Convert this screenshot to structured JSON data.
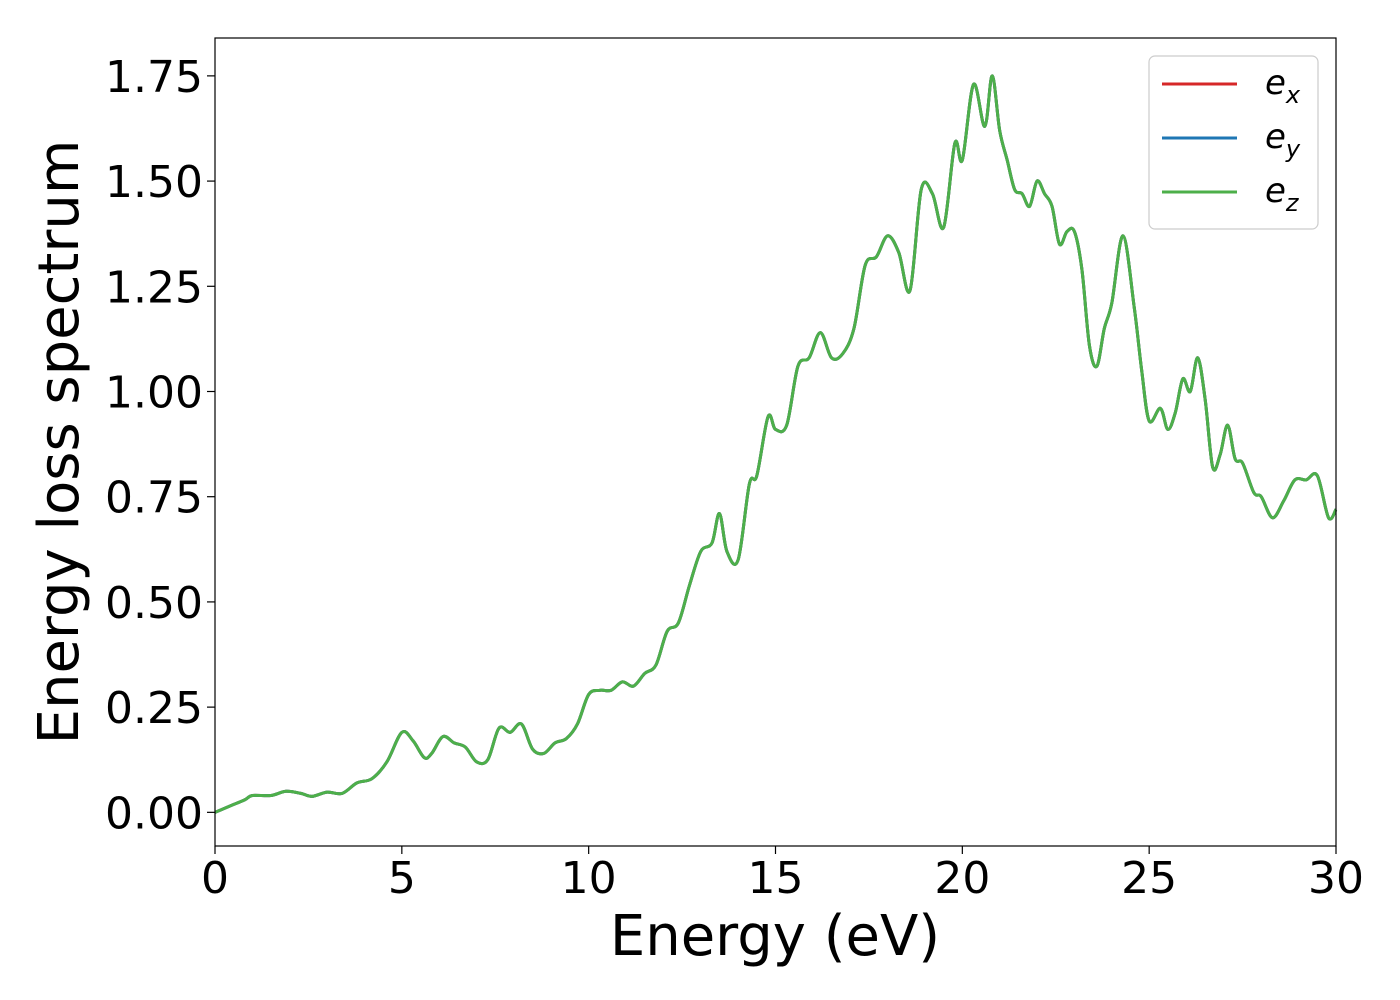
{
  "chart_data": {
    "type": "line",
    "xlabel": "Energy (eV)",
    "ylabel": "Energy loss spectrum",
    "xlim": [
      0,
      30
    ],
    "ylim": [
      -0.08,
      1.84
    ],
    "xticks": [
      0,
      5,
      10,
      15,
      20,
      25,
      30
    ],
    "xtick_labels": [
      "0",
      "5",
      "10",
      "15",
      "20",
      "25",
      "30"
    ],
    "yticks": [
      0,
      0.25,
      0.5,
      0.75,
      1.0,
      1.25,
      1.5,
      1.75
    ],
    "ytick_labels": [
      "0.00",
      "0.25",
      "0.50",
      "0.75",
      "1.00",
      "1.25",
      "1.50",
      "1.75"
    ],
    "grid": false,
    "legend_position": "top-right",
    "x": [
      0,
      0.4,
      0.8,
      1.0,
      1.5,
      1.9,
      2.3,
      2.6,
      3.0,
      3.4,
      3.8,
      4.2,
      4.6,
      5.0,
      5.3,
      5.6,
      5.8,
      6.1,
      6.4,
      6.7,
      7.0,
      7.3,
      7.6,
      7.9,
      8.2,
      8.5,
      8.8,
      9.1,
      9.4,
      9.7,
      10.0,
      10.3,
      10.6,
      10.9,
      11.2,
      11.5,
      11.8,
      12.1,
      12.4,
      12.7,
      13.0,
      13.3,
      13.5,
      13.7,
      14.0,
      14.3,
      14.5,
      14.8,
      15.0,
      15.3,
      15.6,
      15.9,
      16.2,
      16.5,
      16.8,
      17.1,
      17.4,
      17.7,
      18.0,
      18.3,
      18.6,
      18.9,
      19.2,
      19.5,
      19.8,
      20.0,
      20.3,
      20.6,
      20.8,
      21.0,
      21.2,
      21.4,
      21.6,
      21.8,
      22.0,
      22.2,
      22.4,
      22.6,
      22.8,
      23.0,
      23.2,
      23.4,
      23.6,
      23.8,
      24.0,
      24.3,
      24.6,
      24.8,
      25.0,
      25.3,
      25.5,
      25.7,
      25.9,
      26.1,
      26.3,
      26.5,
      26.7,
      26.9,
      27.1,
      27.3,
      27.5,
      27.8,
      28.0,
      28.3,
      28.6,
      28.9,
      29.2,
      29.5,
      29.8,
      30.0
    ],
    "series": [
      {
        "name": "e_x",
        "color": "#d62728",
        "values": [
          0.0,
          0.015,
          0.03,
          0.04,
          0.04,
          0.05,
          0.045,
          0.038,
          0.048,
          0.045,
          0.07,
          0.08,
          0.12,
          0.19,
          0.17,
          0.13,
          0.14,
          0.18,
          0.165,
          0.155,
          0.12,
          0.125,
          0.2,
          0.19,
          0.21,
          0.15,
          0.14,
          0.165,
          0.175,
          0.21,
          0.28,
          0.29,
          0.29,
          0.31,
          0.3,
          0.33,
          0.35,
          0.43,
          0.45,
          0.54,
          0.62,
          0.64,
          0.71,
          0.62,
          0.6,
          0.78,
          0.8,
          0.94,
          0.91,
          0.92,
          1.06,
          1.08,
          1.14,
          1.08,
          1.09,
          1.15,
          1.3,
          1.32,
          1.37,
          1.33,
          1.24,
          1.48,
          1.47,
          1.39,
          1.59,
          1.55,
          1.73,
          1.63,
          1.75,
          1.62,
          1.55,
          1.48,
          1.47,
          1.44,
          1.5,
          1.47,
          1.44,
          1.35,
          1.38,
          1.38,
          1.29,
          1.11,
          1.06,
          1.15,
          1.21,
          1.37,
          1.2,
          1.05,
          0.93,
          0.96,
          0.91,
          0.95,
          1.03,
          1.0,
          1.08,
          0.98,
          0.82,
          0.85,
          0.92,
          0.84,
          0.83,
          0.76,
          0.75,
          0.7,
          0.74,
          0.79,
          0.79,
          0.8,
          0.7,
          0.72
        ]
      },
      {
        "name": "e_y",
        "color": "#1f77b4",
        "values": [
          0.0,
          0.015,
          0.03,
          0.04,
          0.04,
          0.05,
          0.045,
          0.038,
          0.048,
          0.045,
          0.07,
          0.08,
          0.12,
          0.19,
          0.17,
          0.13,
          0.14,
          0.18,
          0.165,
          0.155,
          0.12,
          0.125,
          0.2,
          0.19,
          0.21,
          0.15,
          0.14,
          0.165,
          0.175,
          0.21,
          0.28,
          0.29,
          0.29,
          0.31,
          0.3,
          0.33,
          0.35,
          0.43,
          0.45,
          0.54,
          0.62,
          0.64,
          0.71,
          0.62,
          0.6,
          0.78,
          0.8,
          0.94,
          0.91,
          0.92,
          1.06,
          1.08,
          1.14,
          1.08,
          1.09,
          1.15,
          1.3,
          1.32,
          1.37,
          1.33,
          1.24,
          1.48,
          1.47,
          1.39,
          1.59,
          1.55,
          1.73,
          1.63,
          1.75,
          1.62,
          1.55,
          1.48,
          1.47,
          1.44,
          1.5,
          1.47,
          1.44,
          1.35,
          1.38,
          1.38,
          1.29,
          1.11,
          1.06,
          1.15,
          1.21,
          1.37,
          1.2,
          1.05,
          0.93,
          0.96,
          0.91,
          0.95,
          1.03,
          1.0,
          1.08,
          0.98,
          0.82,
          0.85,
          0.92,
          0.84,
          0.83,
          0.76,
          0.75,
          0.7,
          0.74,
          0.79,
          0.79,
          0.8,
          0.7,
          0.72
        ]
      },
      {
        "name": "e_z",
        "color": "#4daf4a",
        "values": [
          0.0,
          0.015,
          0.03,
          0.04,
          0.04,
          0.05,
          0.045,
          0.038,
          0.048,
          0.045,
          0.07,
          0.08,
          0.12,
          0.19,
          0.17,
          0.13,
          0.14,
          0.18,
          0.165,
          0.155,
          0.12,
          0.125,
          0.2,
          0.19,
          0.21,
          0.15,
          0.14,
          0.165,
          0.175,
          0.21,
          0.28,
          0.29,
          0.29,
          0.31,
          0.3,
          0.33,
          0.35,
          0.43,
          0.45,
          0.54,
          0.62,
          0.64,
          0.71,
          0.62,
          0.6,
          0.78,
          0.8,
          0.94,
          0.91,
          0.92,
          1.06,
          1.08,
          1.14,
          1.08,
          1.09,
          1.15,
          1.3,
          1.32,
          1.37,
          1.33,
          1.24,
          1.48,
          1.47,
          1.39,
          1.59,
          1.55,
          1.73,
          1.63,
          1.75,
          1.62,
          1.55,
          1.48,
          1.47,
          1.44,
          1.5,
          1.47,
          1.44,
          1.35,
          1.38,
          1.38,
          1.29,
          1.11,
          1.06,
          1.15,
          1.21,
          1.37,
          1.2,
          1.05,
          0.93,
          0.96,
          0.91,
          0.95,
          1.03,
          1.0,
          1.08,
          0.98,
          0.82,
          0.85,
          0.92,
          0.84,
          0.83,
          0.76,
          0.75,
          0.7,
          0.74,
          0.79,
          0.79,
          0.8,
          0.7,
          0.72
        ]
      }
    ],
    "legend": [
      {
        "base": "e",
        "sub": "x",
        "color": "#d62728"
      },
      {
        "base": "e",
        "sub": "y",
        "color": "#1f77b4"
      },
      {
        "base": "e",
        "sub": "z",
        "color": "#4daf4a"
      }
    ]
  }
}
